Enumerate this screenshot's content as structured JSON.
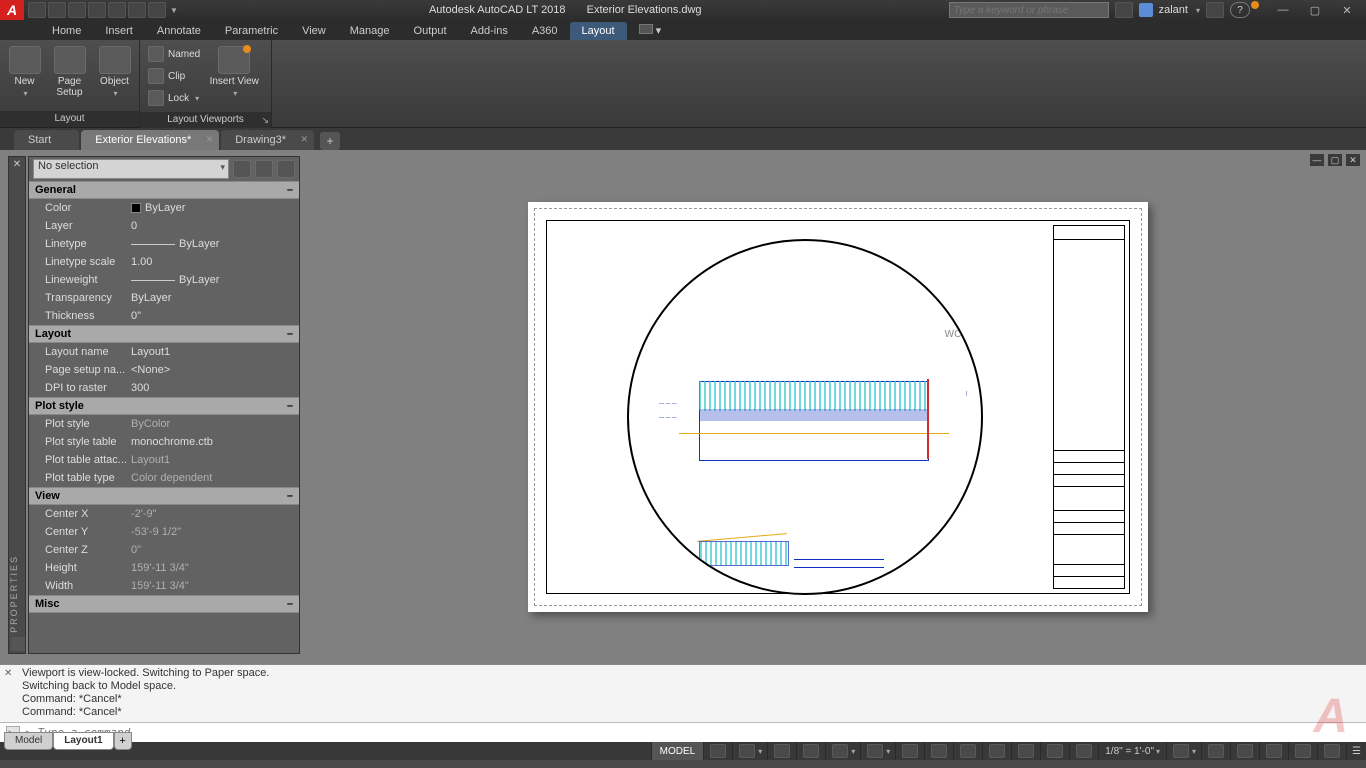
{
  "titlebar": {
    "app": "Autodesk AutoCAD LT 2018",
    "file": "Exterior Elevations.dwg",
    "search_placeholder": "Type a keyword or phrase",
    "user": "zalant"
  },
  "menu": {
    "tabs": [
      "Home",
      "Insert",
      "Annotate",
      "Parametric",
      "View",
      "Manage",
      "Output",
      "Add-ins",
      "A360",
      "Layout"
    ],
    "active": "Layout"
  },
  "ribbon": {
    "panels": [
      {
        "title": "Layout",
        "big": [
          {
            "label": "New",
            "drop": true
          },
          {
            "label": "Page\nSetup",
            "drop": false
          },
          {
            "label": "Object",
            "drop": true
          }
        ]
      },
      {
        "title": "Layout Viewports",
        "small": [
          {
            "label": "Named"
          },
          {
            "label": "Clip"
          },
          {
            "label": "Lock",
            "drop": true
          }
        ],
        "big": [
          {
            "label": "Insert View",
            "drop": true
          }
        ]
      }
    ]
  },
  "doctabs": {
    "tabs": [
      {
        "label": "Start"
      },
      {
        "label": "Exterior Elevations*",
        "active": true
      },
      {
        "label": "Drawing3*"
      }
    ]
  },
  "palette": {
    "selection": "No selection",
    "sections": [
      {
        "title": "General",
        "rows": [
          {
            "label": "Color",
            "value": "ByLayer",
            "swatch": "#000000"
          },
          {
            "label": "Layer",
            "value": "0"
          },
          {
            "label": "Linetype",
            "value": "ByLayer",
            "line": true
          },
          {
            "label": "Linetype scale",
            "value": "1.00"
          },
          {
            "label": "Lineweight",
            "value": "ByLayer",
            "line": true
          },
          {
            "label": "Transparency",
            "value": "ByLayer"
          },
          {
            "label": "Thickness",
            "value": "0\""
          }
        ]
      },
      {
        "title": "Layout",
        "rows": [
          {
            "label": "Layout name",
            "value": "Layout1"
          },
          {
            "label": "Page setup na...",
            "value": "<None>"
          },
          {
            "label": "DPI to raster",
            "value": "300"
          }
        ]
      },
      {
        "title": "Plot style",
        "rows": [
          {
            "label": "Plot style",
            "value": "ByColor",
            "dim": true
          },
          {
            "label": "Plot style table",
            "value": "monochrome.ctb"
          },
          {
            "label": "Plot table attac...",
            "value": "Layout1",
            "dim": true
          },
          {
            "label": "Plot table type",
            "value": "Color dependent",
            "dim": true
          }
        ]
      },
      {
        "title": "View",
        "rows": [
          {
            "label": "Center X",
            "value": "-2'-9\"",
            "dim": true
          },
          {
            "label": "Center Y",
            "value": "-53'-9 1/2\"",
            "dim": true
          },
          {
            "label": "Center Z",
            "value": "0\"",
            "dim": true
          },
          {
            "label": "Height",
            "value": "159'-11 3/4\"",
            "dim": true
          },
          {
            "label": "Width",
            "value": "159'-11 3/4\"",
            "dim": true
          }
        ]
      },
      {
        "title": "Misc",
        "rows": []
      }
    ],
    "sidebar_label": "PROPERTIES"
  },
  "canvas": {
    "wcs_label": "WCS",
    "colors": {
      "paper": "#ffffff",
      "circle_stroke": "#000000",
      "elevation_line": "#1030c0",
      "hatch": "#3ac7d4",
      "accent_red": "#d03028",
      "accent_orange": "#e6a817"
    }
  },
  "command": {
    "history": [
      "Viewport is view-locked. Switching to Paper space.",
      "Switching back to Model space.",
      "Command: *Cancel*",
      "Command: *Cancel*"
    ],
    "placeholder": "Type a command"
  },
  "bottom_tabs": {
    "tabs": [
      {
        "label": "Model"
      },
      {
        "label": "Layout1",
        "active": true
      }
    ]
  },
  "status": {
    "space": "MODEL",
    "scale": "1/8\" = 1'-0\""
  }
}
